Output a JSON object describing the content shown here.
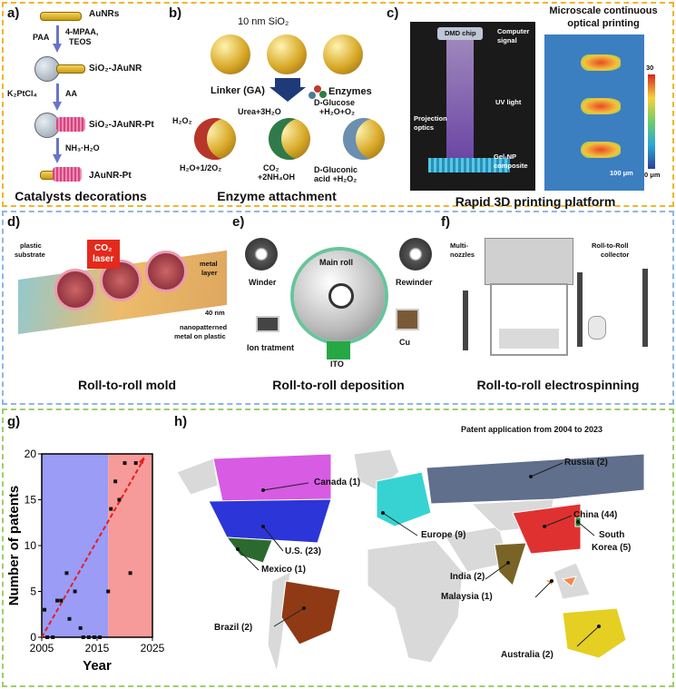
{
  "panels": {
    "a": {
      "letter": "a)",
      "caption": "Catalysts decorations",
      "labels": {
        "aunrs": "AuNRs",
        "paa": "PAA",
        "mpaa": "4-MPAA,",
        "teos": "TEOS",
        "sio2_jaunr": "SiO₂-JAuNR",
        "k2ptcl4": "K₂PtCl₄",
        "aa": "AA",
        "sio2_jaunr_pt": "SiO₂-JAuNR-Pt",
        "nh3": "NH₃·H₂O",
        "jaunr_pt": "JAuNR-Pt"
      }
    },
    "b": {
      "letter": "b)",
      "caption": "Enzyme attachment",
      "labels": {
        "sio2": "10 nm SiO₂",
        "linker": "Linker (GA)",
        "enzymes": "Enzymes",
        "h2o2": "H₂O₂",
        "h2o_o2": "H₂O+1/2O₂",
        "urea": "Urea+3H₂O",
        "co2": "CO₂",
        "nh4oh": "+2NH₄OH",
        "glucose1": "D-Glucose",
        "glucose2": "+H₂O+O₂",
        "gluconic1": "D-Gluconic",
        "gluconic2": "acid +H₂O₂"
      }
    },
    "c": {
      "letter": "c)",
      "caption": "Rapid 3D printing platform",
      "labels": {
        "dmd": "DMD chip",
        "computer": "Computer",
        "signal": "signal",
        "uv": "UV light",
        "proj1": "Projection",
        "proj2": "optics",
        "gel1": "Gel-NP",
        "gel2": "composite",
        "title1": "Microscale continuous",
        "title2": "optical printing",
        "cb_max": "30",
        "cb_min": "0 μm",
        "scale": "100 μm"
      }
    },
    "d": {
      "letter": "d)",
      "caption": "Roll-to-roll mold",
      "labels": {
        "plastic1": "plastic",
        "plastic2": "substrate",
        "co2": "CO₂",
        "laser": "laser",
        "metal1": "metal",
        "metal2": "layer",
        "nm40": "40 nm",
        "nano1": "nanopatterned",
        "nano2": "metal on plastic"
      }
    },
    "e": {
      "letter": "e)",
      "caption": "Roll-to-roll deposition",
      "labels": {
        "main_roll": "Main roll",
        "winder": "Winder",
        "rewinder": "Rewinder",
        "ion": "Ion tratment",
        "cu": "Cu",
        "ito": "ITO"
      }
    },
    "f": {
      "letter": "f)",
      "caption": "Roll-to-roll electrospinning",
      "labels": {
        "multi1": "Multi-",
        "multi2": "nozzles",
        "collector1": "Roll-to-Roll",
        "collector2": "collector"
      }
    },
    "g": {
      "letter": "g)"
    },
    "h": {
      "letter": "h)",
      "title": "Patent application  from 2004 to 2023",
      "countries": [
        {
          "label": "Canada (1)"
        },
        {
          "label": "U.S. (23)"
        },
        {
          "label": "Mexico (1)"
        },
        {
          "label": "Brazil (2)"
        },
        {
          "label": "Russia (2)"
        },
        {
          "label": "Europe (9)"
        },
        {
          "label": "China (44)"
        },
        {
          "label": "South"
        },
        {
          "label": "Korea (5)"
        },
        {
          "label": "India (2)"
        },
        {
          "label": "Malaysia (1)"
        },
        {
          "label": "Australia (2)"
        }
      ]
    }
  },
  "chart_data": {
    "type": "scatter",
    "xlabel": "Year",
    "ylabel": "Number of patents",
    "xlim": [
      2005,
      2025
    ],
    "ylim": [
      0,
      20
    ],
    "xticks": [
      "2005",
      "2015",
      "2025"
    ],
    "yticks": [
      "0",
      "5",
      "10",
      "15",
      "20"
    ],
    "regions": [
      {
        "from": 2005,
        "to": 2017,
        "color": "#9a9cf6"
      },
      {
        "from": 2017,
        "to": 2025,
        "color": "#f79a9a"
      }
    ],
    "points": [
      [
        2005.5,
        3
      ],
      [
        2006,
        0
      ],
      [
        2007,
        0
      ],
      [
        2007.8,
        4
      ],
      [
        2008.5,
        4
      ],
      [
        2009.5,
        7
      ],
      [
        2010,
        2
      ],
      [
        2011,
        5
      ],
      [
        2012,
        1
      ],
      [
        2012.5,
        0
      ],
      [
        2013.5,
        0
      ],
      [
        2014.5,
        0
      ],
      [
        2015.5,
        0
      ],
      [
        2017,
        5
      ],
      [
        2017.5,
        14
      ],
      [
        2018.3,
        17
      ],
      [
        2019,
        15
      ],
      [
        2020,
        19
      ],
      [
        2021,
        7
      ],
      [
        2022,
        19
      ]
    ],
    "trend": {
      "x": [
        2005,
        2023.5
      ],
      "y": [
        0,
        19.5
      ],
      "color": "#e02020"
    }
  },
  "colors": {
    "top_border": "#f2b526",
    "mid_border": "#8ab8e6",
    "bottom_border": "#9ccf6a",
    "canada": "#d75be3",
    "us": "#2b35d8",
    "mexico": "#2b6a2f",
    "brazil": "#8f3a15",
    "russia": "#5f6f8c",
    "europe": "#37d3d3",
    "china": "#e03131",
    "india": "#7a6326",
    "australia": "#e4cf22",
    "malaysia": "#f08a4b",
    "korea": "#1a8a2a"
  }
}
